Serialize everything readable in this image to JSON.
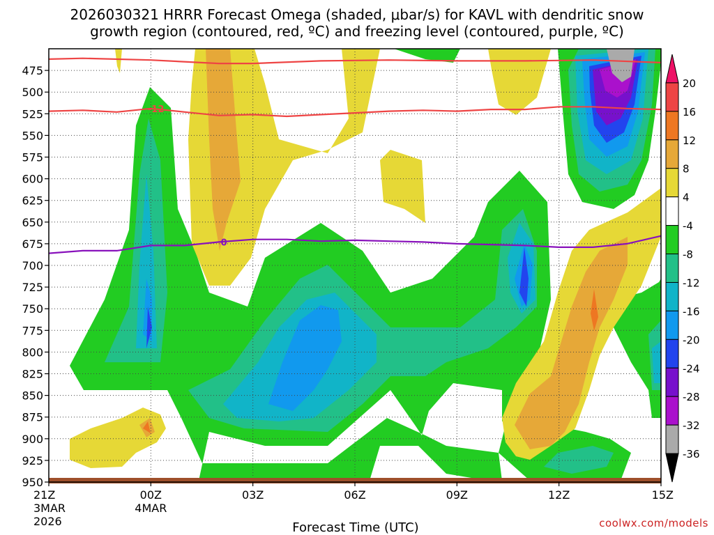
{
  "chart_data": {
    "type": "time-height-contour",
    "title_line1": "2026030321 HRRR Forecast Omega (shaded, μbar/s) for KAVL with dendritic snow",
    "title_line2": "growth region (contoured, red, ºC) and freezing level (contoured, purple, ºC)",
    "xlabel": "Forecast Time (UTC)",
    "credit": "coolwx.com/models",
    "x_ticks": [
      {
        "hour": 0,
        "label": "21Z",
        "sub1": "3MAR",
        "sub2": "2026"
      },
      {
        "hour": 3,
        "label": "00Z",
        "sub1": "4MAR",
        "sub2": ""
      },
      {
        "hour": 6,
        "label": "03Z",
        "sub1": "",
        "sub2": ""
      },
      {
        "hour": 9,
        "label": "06Z",
        "sub1": "",
        "sub2": ""
      },
      {
        "hour": 12,
        "label": "09Z",
        "sub1": "",
        "sub2": ""
      },
      {
        "hour": 15,
        "label": "12Z",
        "sub1": "",
        "sub2": ""
      },
      {
        "hour": 18,
        "label": "15Z",
        "sub1": "",
        "sub2": ""
      }
    ],
    "x_range_hours": [
      0,
      18
    ],
    "y_ticks": [
      475,
      500,
      525,
      550,
      575,
      600,
      625,
      650,
      675,
      700,
      725,
      750,
      775,
      800,
      825,
      850,
      875,
      900,
      925,
      950
    ],
    "y_range_hpa": [
      450,
      950
    ],
    "colorbar": {
      "labels": [
        "20",
        "16",
        "12",
        "8",
        "4",
        "-4",
        "-8",
        "-12",
        "-16",
        "-20",
        "-24",
        "-28",
        "-32",
        "-36"
      ],
      "colors": [
        "#ee1166",
        "#ee4444",
        "#ee7722",
        "#e6a838",
        "#e6d836",
        "#ffffff",
        "#22cc22",
        "#22c088",
        "#11b4c8",
        "#1199ee",
        "#2244ee",
        "#7711cc",
        "#aa11cc",
        "#aaaaaa",
        "#000000"
      ]
    },
    "contours": [
      {
        "name": "dendritic -12C upper",
        "label": "",
        "color": "#ee4444",
        "points": [
          [
            0,
            462
          ],
          [
            1,
            461
          ],
          [
            3,
            463
          ],
          [
            5,
            467
          ],
          [
            6,
            467
          ],
          [
            8,
            464
          ],
          [
            10,
            463
          ],
          [
            12,
            464
          ],
          [
            14,
            464
          ],
          [
            16,
            463
          ],
          [
            18,
            466
          ]
        ]
      },
      {
        "name": "dendritic -12C lower",
        "label": "-12",
        "color": "#ee4444",
        "points": [
          [
            0,
            522
          ],
          [
            1,
            521
          ],
          [
            2,
            523
          ],
          [
            3,
            519
          ],
          [
            4,
            523
          ],
          [
            5,
            527
          ],
          [
            6,
            526
          ],
          [
            7,
            528
          ],
          [
            8,
            526
          ],
          [
            9,
            524
          ],
          [
            10,
            522
          ],
          [
            11,
            521
          ],
          [
            12,
            522
          ],
          [
            13,
            520
          ],
          [
            14,
            520
          ],
          [
            15,
            517
          ],
          [
            16,
            517
          ],
          [
            17,
            519
          ],
          [
            18,
            520
          ]
        ]
      },
      {
        "name": "freezing level 0C",
        "label": "0",
        "color": "#8811bb",
        "points": [
          [
            0,
            686
          ],
          [
            1,
            683
          ],
          [
            2,
            683
          ],
          [
            3,
            677
          ],
          [
            4,
            677
          ],
          [
            5,
            673
          ],
          [
            6,
            670
          ],
          [
            7,
            670
          ],
          [
            8,
            672
          ],
          [
            9,
            671
          ],
          [
            10,
            672
          ],
          [
            11,
            673
          ],
          [
            12,
            675
          ],
          [
            13,
            676
          ],
          [
            14,
            677
          ],
          [
            15,
            679
          ],
          [
            16,
            679
          ],
          [
            17,
            675
          ],
          [
            18,
            666
          ]
        ]
      }
    ],
    "omega_regions": [
      {
        "band": "upward -4 to -8",
        "color": "#22cc22",
        "description": "broad area 650-925 hPa from 22Z to 15Z"
      },
      {
        "band": "upward -16 to -20",
        "color": "#1199ee",
        "description": "core near 04-05Z at 700-850 hPa"
      },
      {
        "band": "upward -24 to -36",
        "color": "#7711cc",
        "description": "upper-level maximum near 13Z at 450-530 hPa"
      },
      {
        "band": "downward +4 to +12",
        "color": "#e6a838",
        "description": "subsidence near 02Z aloft and 12-14Z lower levels"
      }
    ]
  }
}
